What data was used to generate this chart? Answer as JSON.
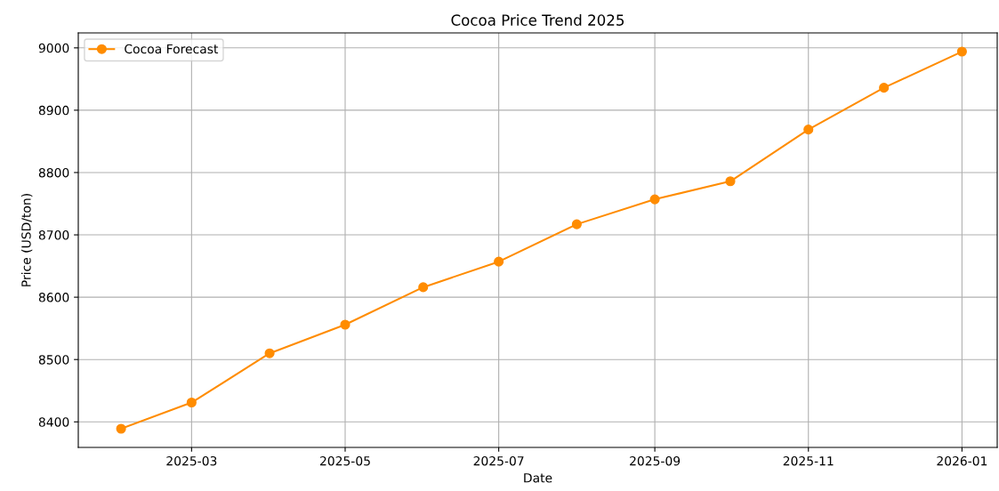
{
  "chart_data": {
    "type": "line",
    "title": "Cocoa Price Trend 2025",
    "xlabel": "Date",
    "ylabel": "Price (USD/ton)",
    "x": [
      "2025-02-01",
      "2025-03-01",
      "2025-04-01",
      "2025-05-01",
      "2025-06-01",
      "2025-07-01",
      "2025-08-01",
      "2025-09-01",
      "2025-10-01",
      "2025-11-01",
      "2025-12-01",
      "2026-01-01"
    ],
    "series": [
      {
        "name": "Cocoa Forecast",
        "color": "#ff8c00",
        "values": [
          8389,
          8431,
          8510,
          8556,
          8616,
          8657,
          8717,
          8757,
          8786,
          8869,
          8936,
          8994
        ]
      }
    ],
    "xlim": [
      "2025-01-15",
      "2026-01-15"
    ],
    "xticks": [
      "2025-03",
      "2025-05",
      "2025-07",
      "2025-09",
      "2025-11",
      "2026-01"
    ],
    "ylim": [
      8359,
      9024
    ],
    "yticks": [
      8400,
      8500,
      8600,
      8700,
      8800,
      8900,
      9000
    ],
    "grid": true,
    "legend": "top left",
    "marker": "circle",
    "line_style": "solid"
  }
}
